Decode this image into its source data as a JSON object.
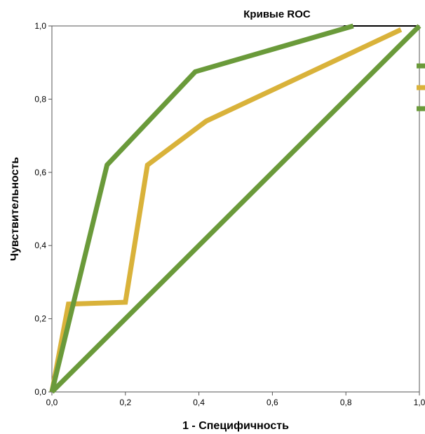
{
  "chart_data": {
    "type": "line",
    "title": "Кривые ROC",
    "xlabel": "1 - Специфичность",
    "ylabel": "Чувствительность",
    "xlim": [
      0,
      1
    ],
    "ylim": [
      0,
      1
    ],
    "x_ticks": [
      "0,0",
      "0,2",
      "0,4",
      "0,6",
      "0,8",
      "1,0"
    ],
    "y_ticks": [
      "0,0",
      "0,2",
      "0,4",
      "0,6",
      "0,8",
      "1,0"
    ],
    "grid": false,
    "legend": "right (partially cut off)",
    "series": [
      {
        "color": "#d9b23a",
        "points": [
          [
            0.0,
            0.0
          ],
          [
            0.045,
            0.24
          ],
          [
            0.2,
            0.245
          ],
          [
            0.26,
            0.62
          ],
          [
            0.42,
            0.74
          ],
          [
            0.95,
            0.99
          ]
        ]
      },
      {
        "color": "#6a9a3a",
        "points": [
          [
            0.0,
            0.0
          ],
          [
            0.15,
            0.62
          ],
          [
            0.39,
            0.875
          ],
          [
            0.82,
            1.0
          ]
        ]
      },
      {
        "color": "#6a9a3a",
        "points": [
          [
            0.0,
            0.0
          ],
          [
            1.0,
            1.0
          ]
        ]
      }
    ],
    "legend_swatches": [
      {
        "color": "#6a9a3a"
      },
      {
        "color": "#d9b23a"
      },
      {
        "color": "#6a9a3a"
      }
    ]
  }
}
